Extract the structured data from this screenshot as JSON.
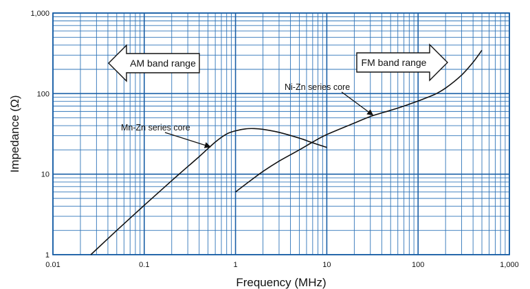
{
  "chart_data": {
    "type": "line",
    "title": "",
    "xlabel": "Frequency (MHz)",
    "ylabel": "Impedance (Ω)",
    "x_scale": "log",
    "y_scale": "log",
    "xlim": [
      0.01,
      1000
    ],
    "ylim": [
      1,
      1000
    ],
    "grid": true,
    "x_ticks": [
      {
        "value": 0.01,
        "label": "0.01"
      },
      {
        "value": 0.1,
        "label": "0.1"
      },
      {
        "value": 1,
        "label": "1"
      },
      {
        "value": 10,
        "label": "10"
      },
      {
        "value": 100,
        "label": "100"
      },
      {
        "value": 1000,
        "label": "1,000"
      }
    ],
    "y_ticks": [
      {
        "value": 1,
        "label": "1"
      },
      {
        "value": 10,
        "label": "10"
      },
      {
        "value": 100,
        "label": "100"
      },
      {
        "value": 1000,
        "label": "1,000"
      }
    ],
    "series": [
      {
        "name": "Mn-Zn series core",
        "points": [
          [
            0.026,
            1.0
          ],
          [
            0.05,
            2.0
          ],
          [
            0.1,
            4.1
          ],
          [
            0.2,
            8.3
          ],
          [
            0.4,
            16.5
          ],
          [
            0.6,
            25
          ],
          [
            0.8,
            31.5
          ],
          [
            1.0,
            34.5
          ],
          [
            1.3,
            36.5
          ],
          [
            1.6,
            36.8
          ],
          [
            2.0,
            36
          ],
          [
            3.0,
            33
          ],
          [
            5.0,
            28
          ],
          [
            7.0,
            24.5
          ],
          [
            10,
            21.5
          ]
        ]
      },
      {
        "name": "Ni-Zn series core",
        "points": [
          [
            1.0,
            6.0
          ],
          [
            1.5,
            8.5
          ],
          [
            2.0,
            10.8
          ],
          [
            3.0,
            14.5
          ],
          [
            5.0,
            20
          ],
          [
            7.0,
            25
          ],
          [
            10,
            31
          ],
          [
            20,
            43
          ],
          [
            30,
            52
          ],
          [
            50,
            62
          ],
          [
            70,
            70
          ],
          [
            100,
            81
          ],
          [
            150,
            97
          ],
          [
            200,
            117
          ],
          [
            300,
            170
          ],
          [
            400,
            245
          ],
          [
            500,
            345
          ]
        ]
      }
    ],
    "annotations": [
      {
        "text": "Mn-Zn series core",
        "target": "Mn-Zn series core"
      },
      {
        "text": "Ni-Zn series core",
        "target": "Ni-Zn series core"
      }
    ],
    "band_arrows": [
      {
        "text": "AM band range",
        "direction": "left"
      },
      {
        "text": "FM band range",
        "direction": "right"
      }
    ],
    "colors": {
      "line": "#111111",
      "major_grid": "#1a5fa6",
      "minor_grid": "#2f74b8",
      "frame": "#1a5fa6"
    }
  }
}
